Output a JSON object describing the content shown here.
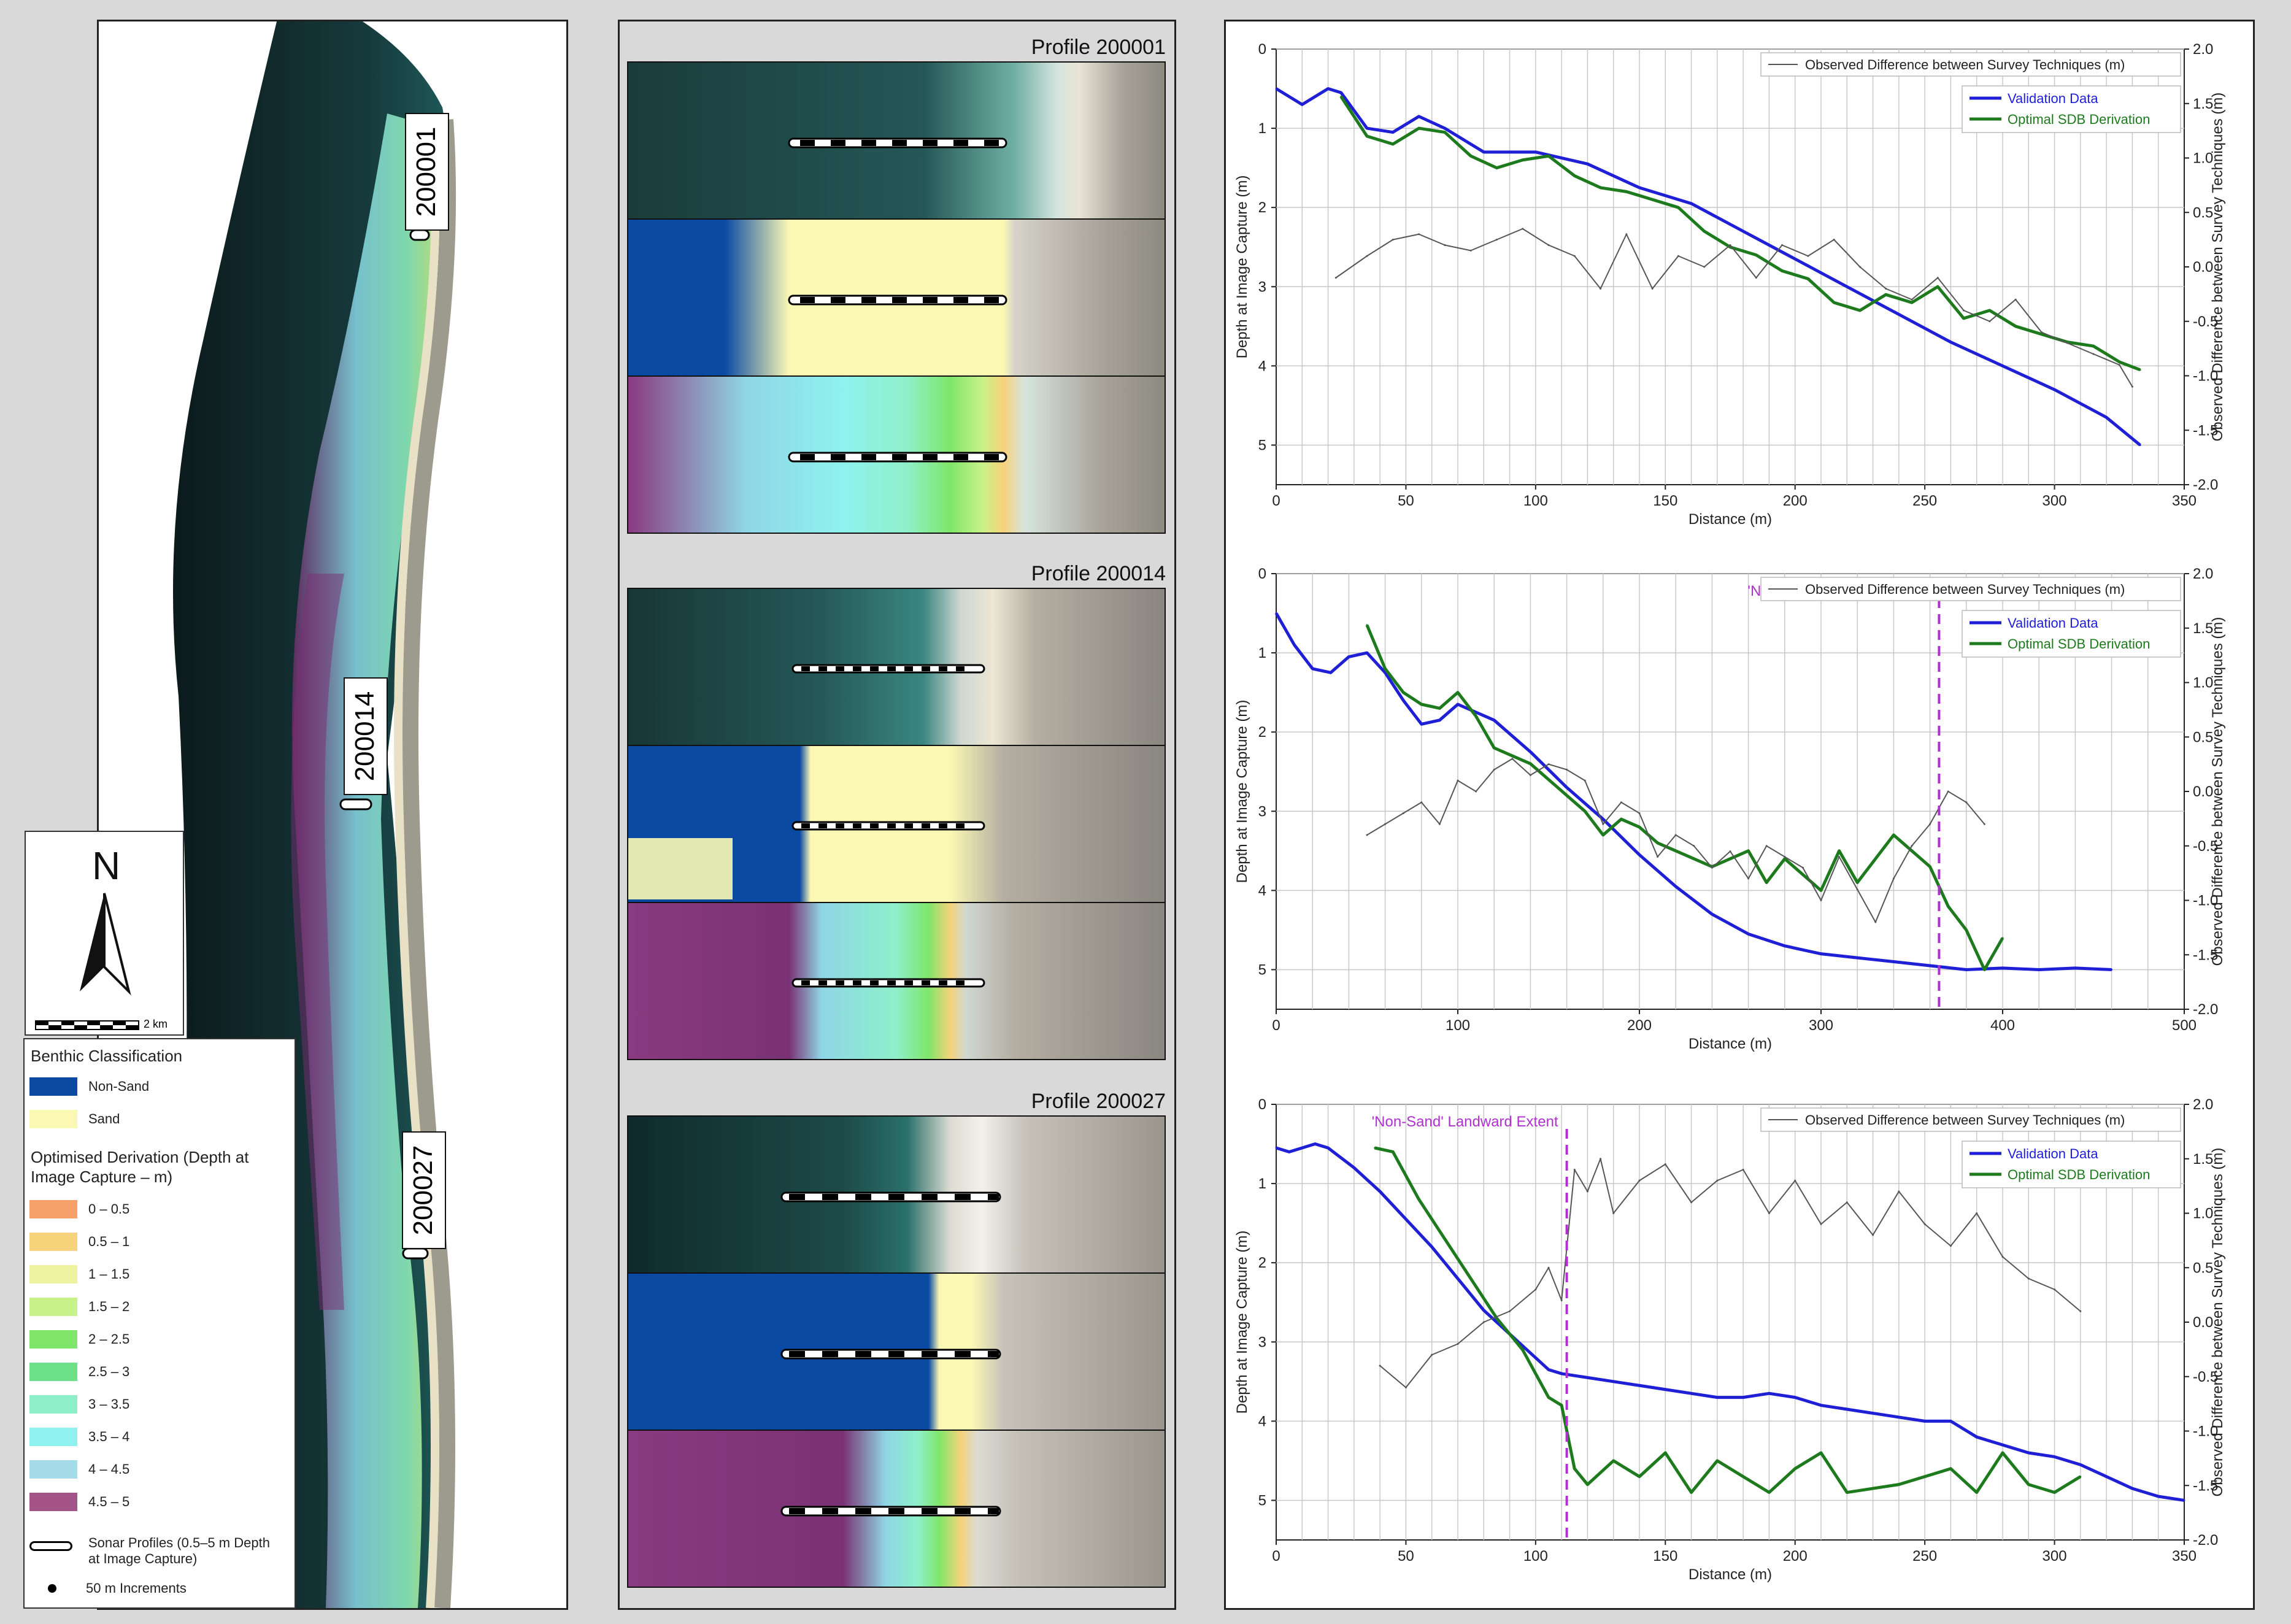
{
  "map": {
    "labels": [
      "200001",
      "200014",
      "200027"
    ],
    "scalebar_label": "2 km",
    "north_label": "N"
  },
  "legend": {
    "title1": "Benthic Classification",
    "classes": [
      {
        "label": "Non-Sand",
        "color": "#0b4aa3"
      },
      {
        "label": "Sand",
        "color": "#fbf8b4"
      }
    ],
    "title2": "Optimised Derivation (Depth at Image Capture – m)",
    "depth_bins": [
      {
        "label": "0 – 0.5",
        "color": "#f7a06a"
      },
      {
        "label": "0.5 – 1",
        "color": "#f6d27a"
      },
      {
        "label": "1 – 1.5",
        "color": "#eef3a2"
      },
      {
        "label": "1.5 – 2",
        "color": "#c8f38a"
      },
      {
        "label": "2 – 2.5",
        "color": "#7fe66a"
      },
      {
        "label": "2.5 – 3",
        "color": "#6fe08a"
      },
      {
        "label": "3 – 3.5",
        "color": "#8ef0c9"
      },
      {
        "label": "3.5 – 4",
        "color": "#8ff2ee"
      },
      {
        "label": "4 – 4.5",
        "color": "#a6dcea"
      },
      {
        "label": "4.5 – 5",
        "color": "#a5548a"
      }
    ],
    "sonar_label": "Sonar Profiles (0.5–5 m Depth at Image Capture)",
    "increment_label": "50 m Increments"
  },
  "profiles": [
    {
      "title": "Profile 200001"
    },
    {
      "title": "Profile 200014"
    },
    {
      "title": "Profile 200027"
    }
  ],
  "colors": {
    "validation": "#1f1fd6",
    "sdb": "#1d7a1d",
    "observed": "#555555",
    "extent": "#b030d0"
  },
  "chart_data": [
    {
      "type": "line",
      "title": "",
      "xlabel": "Distance (m)",
      "ylabel": "Depth at Image Capture (m)",
      "y2label": "Observed Difference between Survey Techniques (m)",
      "xlim": [
        0,
        350
      ],
      "ylim": [
        0,
        5.5
      ],
      "y2lim": [
        -2.0,
        2.0
      ],
      "xticks": [
        0,
        50,
        100,
        150,
        200,
        250,
        300,
        350
      ],
      "yticks": [
        0,
        1,
        2,
        3,
        4,
        5
      ],
      "y2ticks": [
        "2.0",
        "1.5",
        "1.0",
        "0.5",
        "0.0",
        "-0.5",
        "-1.0",
        "-1.5",
        "-2.0"
      ],
      "legend_observed": "Observed Difference between Survey Techniques (m)",
      "legend_validation": "Validation Data",
      "legend_sdb": "Optimal SDB Derivation",
      "extent_label": "",
      "extent_x": null,
      "series": [
        {
          "name": "Validation Data",
          "x": [
            0,
            10,
            20,
            25,
            35,
            45,
            55,
            65,
            80,
            100,
            120,
            140,
            160,
            180,
            200,
            220,
            240,
            260,
            280,
            300,
            320,
            333
          ],
          "values": [
            0.5,
            0.7,
            0.5,
            0.55,
            1.0,
            1.05,
            0.85,
            1.0,
            1.3,
            1.3,
            1.45,
            1.75,
            1.95,
            2.3,
            2.65,
            3.0,
            3.35,
            3.7,
            4.0,
            4.3,
            4.65,
            5.0
          ]
        },
        {
          "name": "Optimal SDB Derivation",
          "x": [
            25,
            35,
            45,
            55,
            65,
            75,
            85,
            95,
            105,
            115,
            125,
            135,
            145,
            155,
            165,
            175,
            185,
            195,
            205,
            215,
            225,
            235,
            245,
            255,
            265,
            275,
            285,
            295,
            305,
            315,
            325,
            333
          ],
          "values": [
            0.6,
            1.1,
            1.2,
            1.0,
            1.05,
            1.35,
            1.5,
            1.4,
            1.35,
            1.6,
            1.75,
            1.8,
            1.9,
            2.0,
            2.3,
            2.5,
            2.6,
            2.8,
            2.9,
            3.2,
            3.3,
            3.1,
            3.2,
            3.0,
            3.4,
            3.3,
            3.5,
            3.6,
            3.7,
            3.75,
            3.95,
            4.05
          ]
        },
        {
          "name": "Observed Difference between Survey Techniques (m)",
          "x": [
            23,
            35,
            45,
            55,
            65,
            75,
            85,
            95,
            105,
            115,
            125,
            135,
            145,
            155,
            165,
            175,
            185,
            195,
            205,
            215,
            225,
            235,
            245,
            255,
            265,
            275,
            285,
            295,
            305,
            315,
            325,
            330
          ],
          "values": [
            -0.1,
            0.1,
            0.25,
            0.3,
            0.2,
            0.15,
            0.25,
            0.35,
            0.2,
            0.1,
            -0.2,
            0.3,
            -0.2,
            0.1,
            0.0,
            0.2,
            -0.1,
            0.2,
            0.1,
            0.25,
            0.0,
            -0.2,
            -0.3,
            -0.1,
            -0.4,
            -0.5,
            -0.3,
            -0.6,
            -0.7,
            -0.8,
            -0.9,
            -1.1
          ]
        }
      ]
    },
    {
      "type": "line",
      "title": "",
      "xlabel": "Distance (m)",
      "ylabel": "Depth at Image Capture (m)",
      "y2label": "Observed Difference between Survey Techniques (m)",
      "xlim": [
        0,
        500
      ],
      "ylim": [
        0,
        5.5
      ],
      "y2lim": [
        -2.0,
        2.0
      ],
      "xticks": [
        0,
        100,
        200,
        300,
        400,
        500
      ],
      "yticks": [
        0,
        1,
        2,
        3,
        4,
        5
      ],
      "y2ticks": [
        "2.0",
        "1.5",
        "1.0",
        "0.5",
        "0.0",
        "-0.5",
        "-1.0",
        "-1.5",
        "-2.0"
      ],
      "legend_observed": "Observed Difference between Survey Techniques (m)",
      "legend_validation": "Validation Data",
      "legend_sdb": "Optimal SDB Derivation",
      "extent_label": "'Non-Sand' Landward Extent",
      "extent_x": 365,
      "series": [
        {
          "name": "Validation Data",
          "x": [
            0,
            10,
            20,
            30,
            40,
            50,
            60,
            70,
            80,
            90,
            100,
            120,
            140,
            160,
            180,
            200,
            220,
            240,
            260,
            280,
            300,
            320,
            340,
            360,
            380,
            400,
            420,
            440,
            460
          ],
          "values": [
            0.5,
            0.9,
            1.2,
            1.25,
            1.05,
            1.0,
            1.25,
            1.6,
            1.9,
            1.85,
            1.65,
            1.85,
            2.25,
            2.7,
            3.1,
            3.55,
            3.95,
            4.3,
            4.55,
            4.7,
            4.8,
            4.85,
            4.9,
            4.95,
            5.0,
            4.98,
            5.0,
            4.98,
            5.0
          ]
        },
        {
          "name": "Optimal SDB Derivation",
          "x": [
            50,
            60,
            70,
            80,
            90,
            100,
            110,
            120,
            130,
            140,
            150,
            160,
            170,
            180,
            190,
            200,
            210,
            220,
            230,
            240,
            250,
            260,
            270,
            280,
            290,
            300,
            310,
            320,
            330,
            340,
            350,
            360,
            370,
            380,
            390,
            400
          ],
          "values": [
            0.65,
            1.2,
            1.5,
            1.65,
            1.7,
            1.5,
            1.8,
            2.2,
            2.3,
            2.4,
            2.6,
            2.8,
            3.0,
            3.3,
            3.1,
            3.2,
            3.4,
            3.5,
            3.6,
            3.7,
            3.6,
            3.5,
            3.9,
            3.6,
            3.8,
            4.0,
            3.5,
            3.9,
            3.6,
            3.3,
            3.5,
            3.7,
            4.2,
            4.5,
            5.0,
            4.6
          ]
        },
        {
          "name": "Observed Difference between Survey Techniques (m)",
          "x": [
            50,
            60,
            70,
            80,
            90,
            100,
            110,
            120,
            130,
            140,
            150,
            160,
            170,
            180,
            190,
            200,
            210,
            220,
            230,
            240,
            250,
            260,
            270,
            280,
            290,
            300,
            310,
            320,
            330,
            340,
            350,
            360,
            370,
            380,
            390
          ],
          "values": [
            -0.4,
            -0.3,
            -0.2,
            -0.1,
            -0.3,
            0.1,
            0.0,
            0.2,
            0.3,
            0.15,
            0.25,
            0.2,
            0.1,
            -0.3,
            -0.1,
            -0.2,
            -0.6,
            -0.4,
            -0.5,
            -0.7,
            -0.55,
            -0.8,
            -0.5,
            -0.6,
            -0.7,
            -1.0,
            -0.6,
            -0.9,
            -1.2,
            -0.8,
            -0.5,
            -0.3,
            0.0,
            -0.1,
            -0.3
          ]
        }
      ]
    },
    {
      "type": "line",
      "title": "",
      "xlabel": "Distance (m)",
      "ylabel": "Depth at Image Capture (m)",
      "y2label": "Observed Difference between Survey Techniques (m)",
      "xlim": [
        0,
        350
      ],
      "ylim": [
        0,
        5.5
      ],
      "y2lim": [
        -2.0,
        2.0
      ],
      "xticks": [
        0,
        50,
        100,
        150,
        200,
        250,
        300,
        350
      ],
      "yticks": [
        0,
        1,
        2,
        3,
        4,
        5
      ],
      "y2ticks": [
        "2.0",
        "1.5",
        "1.0",
        "0.5",
        "0.0",
        "-0.5",
        "-1.0",
        "-1.5",
        "-2.0"
      ],
      "legend_observed": "Observed Difference between Survey Techniques (m)",
      "legend_validation": "Validation Data",
      "legend_sdb": "Optimal SDB Derivation",
      "extent_label": "'Non-Sand' Landward Extent",
      "extent_x": 112,
      "series": [
        {
          "name": "Validation Data",
          "x": [
            0,
            5,
            10,
            15,
            20,
            30,
            40,
            50,
            60,
            70,
            80,
            90,
            100,
            105,
            110,
            120,
            130,
            140,
            150,
            160,
            170,
            180,
            190,
            200,
            210,
            220,
            230,
            240,
            250,
            260,
            270,
            280,
            290,
            300,
            310,
            320,
            330,
            340,
            350
          ],
          "values": [
            0.55,
            0.6,
            0.55,
            0.5,
            0.55,
            0.8,
            1.1,
            1.45,
            1.8,
            2.2,
            2.6,
            2.9,
            3.2,
            3.35,
            3.4,
            3.45,
            3.5,
            3.55,
            3.6,
            3.65,
            3.7,
            3.7,
            3.65,
            3.7,
            3.8,
            3.85,
            3.9,
            3.95,
            4.0,
            4.0,
            4.2,
            4.3,
            4.4,
            4.45,
            4.55,
            4.7,
            4.85,
            4.95,
            5.0
          ]
        },
        {
          "name": "Optimal SDB Derivation",
          "x": [
            38,
            45,
            55,
            65,
            75,
            85,
            95,
            100,
            105,
            110,
            115,
            120,
            130,
            140,
            150,
            160,
            170,
            180,
            190,
            200,
            210,
            220,
            230,
            240,
            250,
            260,
            270,
            280,
            290,
            300,
            310
          ],
          "values": [
            0.55,
            0.6,
            1.2,
            1.7,
            2.2,
            2.7,
            3.1,
            3.4,
            3.7,
            3.8,
            4.6,
            4.8,
            4.5,
            4.7,
            4.4,
            4.9,
            4.5,
            4.7,
            4.9,
            4.6,
            4.4,
            4.9,
            4.85,
            4.8,
            4.7,
            4.6,
            4.9,
            4.4,
            4.8,
            4.9,
            4.7
          ]
        },
        {
          "name": "Observed Difference between Survey Techniques (m)",
          "x": [
            40,
            50,
            60,
            70,
            80,
            90,
            100,
            105,
            110,
            115,
            120,
            125,
            130,
            140,
            150,
            160,
            170,
            180,
            190,
            200,
            210,
            220,
            230,
            240,
            250,
            260,
            270,
            280,
            290,
            300,
            310
          ],
          "values": [
            -0.4,
            -0.6,
            -0.3,
            -0.2,
            0.0,
            0.1,
            0.3,
            0.5,
            0.2,
            1.4,
            1.2,
            1.5,
            1.0,
            1.3,
            1.45,
            1.1,
            1.3,
            1.4,
            1.0,
            1.3,
            0.9,
            1.1,
            0.8,
            1.2,
            0.9,
            0.7,
            1.0,
            0.6,
            0.4,
            0.3,
            0.1
          ]
        }
      ]
    }
  ]
}
